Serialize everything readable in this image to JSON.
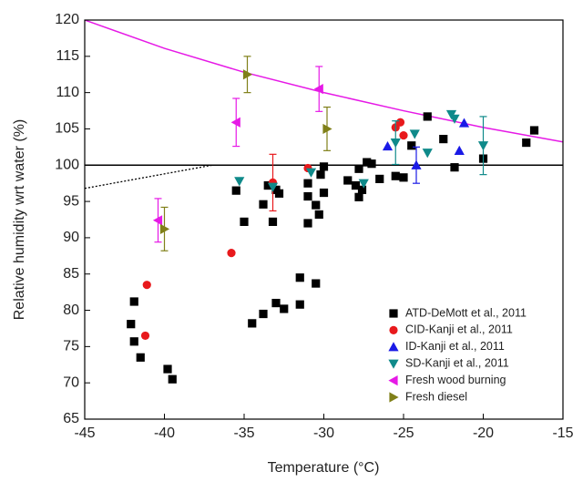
{
  "chart_data": {
    "type": "scatter",
    "x_label": "Temperature (°C)",
    "y_label": "Relative humidity wrt water (%)",
    "xlim": [
      -45,
      -15
    ],
    "xticks": [
      -45,
      -40,
      -35,
      -30,
      -25,
      -20,
      -15
    ],
    "ylim": [
      65,
      120
    ],
    "yticks": [
      65,
      70,
      75,
      80,
      85,
      90,
      95,
      100,
      105,
      110,
      115,
      120
    ],
    "legend": "lower right",
    "series": [
      {
        "name": "ATD-DeMott et al., 2011",
        "color": "#000000",
        "marker": "square",
        "x": [
          -42.1,
          -41.9,
          -41.9,
          -41.5,
          -39.8,
          -39.5,
          -35.5,
          -35.0,
          -34.5,
          -33.8,
          -33.5,
          -33.2,
          -33.0,
          -32.8,
          -33.0,
          -32.5,
          -33.8,
          -31.5,
          -31.5,
          -30.5,
          -31.0,
          -31.0,
          -31.0,
          -30.5,
          -30.3,
          -30.0,
          -30.2,
          -30.0,
          -28.5,
          -28.0,
          -27.6,
          -27.8,
          -27.8,
          -27.3,
          -27.0,
          -26.5,
          -25.5,
          -25.0,
          -24.5,
          -23.5,
          -22.5,
          -21.8,
          -20.0,
          -17.3,
          -16.8
        ],
        "values": [
          78.1,
          81.2,
          75.7,
          73.5,
          71.9,
          70.5,
          96.5,
          92.2,
          78.2,
          94.6,
          97.2,
          92.2,
          96.6,
          96.1,
          81.0,
          80.2,
          79.5,
          84.5,
          80.8,
          83.7,
          97.5,
          95.7,
          92.0,
          94.5,
          93.2,
          96.2,
          98.7,
          99.8,
          97.9,
          97.2,
          96.6,
          95.6,
          99.5,
          100.4,
          100.2,
          98.1,
          98.5,
          98.3,
          102.7,
          106.7,
          103.6,
          99.7,
          100.9,
          103.1,
          104.8
        ]
      },
      {
        "name": "CID-Kanji et al., 2011",
        "color": "#e8191c",
        "marker": "circle",
        "x": [
          -35.8,
          -41.1,
          -41.2,
          -33.2,
          -31.0,
          -25.5,
          -25.2,
          -25.0
        ],
        "values": [
          87.9,
          83.5,
          76.5,
          97.6,
          99.6,
          105.2,
          105.9,
          104.1
        ],
        "errors": [
          null,
          null,
          null,
          3.9,
          null,
          null,
          null,
          null
        ]
      },
      {
        "name": "ID-Kanji et al., 2011",
        "color": "#1a1ae6",
        "marker": "triangle-up",
        "x": [
          -26.0,
          -24.2,
          -21.5,
          -21.2
        ],
        "values": [
          102.6,
          100.0,
          102.0,
          105.8
        ],
        "errors": [
          null,
          2.5,
          null,
          null
        ]
      },
      {
        "name": "SD-Kanji et al., 2011",
        "color": "#0f8a8a",
        "marker": "triangle-down",
        "x": [
          -35.3,
          -33.2,
          -30.8,
          -27.5,
          -25.5,
          -24.3,
          -23.5,
          -22.0,
          -21.8,
          -20.0
        ],
        "values": [
          97.8,
          97.0,
          99.0,
          97.5,
          103.1,
          104.3,
          101.7,
          107.0,
          106.4,
          102.7
        ],
        "errors": [
          null,
          null,
          null,
          null,
          3.0,
          null,
          null,
          null,
          null,
          4.0
        ]
      },
      {
        "name": "Fresh wood burning",
        "color": "#e619e6",
        "marker": "triangle-left",
        "x": [
          -40.4,
          -35.5,
          -30.3
        ],
        "values": [
          92.4,
          105.9,
          110.5
        ],
        "errors": [
          3.0,
          3.3,
          3.1
        ]
      },
      {
        "name": "Fresh diesel",
        "color": "#808019",
        "marker": "triangle-right",
        "x": [
          -40.0,
          -34.8,
          -29.8
        ],
        "values": [
          91.2,
          112.5,
          105.0
        ],
        "errors": [
          3.0,
          2.5,
          3.0
        ]
      }
    ],
    "lines": [
      {
        "color": "#e619e6",
        "style": "solid",
        "x": [
          -45,
          -40,
          -35,
          -30,
          -25,
          -20,
          -15
        ],
        "values": [
          120,
          116.1,
          112.8,
          110,
          107.5,
          105.2,
          103.2
        ]
      },
      {
        "color": "#000000",
        "style": "solid",
        "x": [
          -45,
          -15
        ],
        "values": [
          100,
          100
        ]
      },
      {
        "color": "#000000",
        "style": "dotted",
        "x": [
          -45,
          -37
        ],
        "values": [
          96.8,
          100
        ]
      }
    ]
  }
}
